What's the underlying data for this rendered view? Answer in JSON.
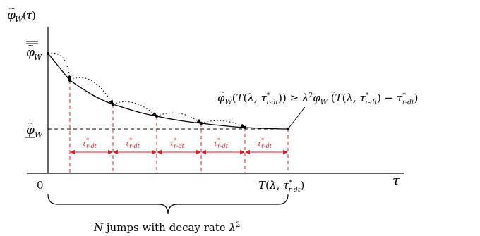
{
  "axes": {
    "y_label": "φ̃_W(τ)",
    "x_label": "τ",
    "origin_label": "0",
    "x_end_label": "T(λ, τ*_{r-dt})"
  },
  "levels": {
    "upper_label": "φ̃_W (overline)",
    "lower_label": "φ̃_W (underline)"
  },
  "interval_label": "τ*_{r-dt}",
  "interval_count": 5,
  "inequality": "φ̃_W(T(λ, τ*_{r-dt})) ≥ λ²φ̃_W (T(λ, τ*_{r-dt}) − τ*_{r-dt})",
  "brace_caption": "N jumps with decay rate λ²",
  "colors": {
    "axis": "#000000",
    "guide": "#e8191d",
    "curve": "#000000"
  }
}
